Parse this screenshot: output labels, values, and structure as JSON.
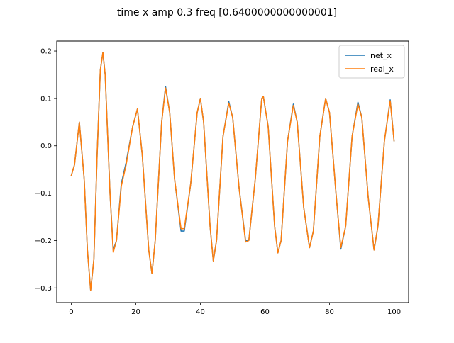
{
  "chart_data": {
    "type": "line",
    "title": "time x amp 0.3 freq [0.6400000000000001]",
    "xlabel": "",
    "ylabel": "",
    "xlim": [
      -4.5,
      104.5
    ],
    "ylim": [
      -0.331,
      0.221
    ],
    "xticks": [
      0,
      20,
      40,
      60,
      80,
      100
    ],
    "yticks": [
      -0.3,
      -0.2,
      -0.1,
      0.0,
      0.1,
      0.2
    ],
    "xtick_labels": [
      "0",
      "20",
      "40",
      "60",
      "80",
      "100"
    ],
    "ytick_labels": [
      "−0.3",
      "−0.2",
      "−0.1",
      "0.0",
      "0.1",
      "0.2"
    ],
    "grid": false,
    "legend_position": "top-right",
    "series": [
      {
        "name": "net_x",
        "color": "#1f77b4",
        "points": [
          [
            0,
            -0.063
          ],
          [
            1,
            -0.04
          ],
          [
            2.5,
            0.05
          ],
          [
            4,
            -0.07
          ],
          [
            5,
            -0.22
          ],
          [
            6,
            -0.305
          ],
          [
            7,
            -0.24
          ],
          [
            8,
            -0.02
          ],
          [
            9,
            0.16
          ],
          [
            9.8,
            0.197
          ],
          [
            10.5,
            0.15
          ],
          [
            12,
            -0.1
          ],
          [
            13,
            -0.22
          ],
          [
            14,
            -0.2
          ],
          [
            15.5,
            -0.08
          ],
          [
            17,
            -0.035
          ],
          [
            19,
            0.04
          ],
          [
            20.5,
            0.078
          ],
          [
            22,
            -0.02
          ],
          [
            24,
            -0.22
          ],
          [
            25,
            -0.27
          ],
          [
            26,
            -0.2
          ],
          [
            28,
            0.05
          ],
          [
            29.2,
            0.125
          ],
          [
            30.5,
            0.07
          ],
          [
            32,
            -0.07
          ],
          [
            34,
            -0.18
          ],
          [
            35,
            -0.18
          ],
          [
            37,
            -0.08
          ],
          [
            39,
            0.07
          ],
          [
            40,
            0.1
          ],
          [
            41,
            0.05
          ],
          [
            43,
            -0.17
          ],
          [
            44,
            -0.243
          ],
          [
            45,
            -0.2
          ],
          [
            47,
            0.02
          ],
          [
            48.8,
            0.093
          ],
          [
            50,
            0.06
          ],
          [
            52,
            -0.09
          ],
          [
            54,
            -0.2
          ],
          [
            55,
            -0.2
          ],
          [
            57,
            -0.07
          ],
          [
            59,
            0.1
          ],
          [
            59.5,
            0.104
          ],
          [
            61,
            0.04
          ],
          [
            63,
            -0.17
          ],
          [
            64,
            -0.226
          ],
          [
            65,
            -0.2
          ],
          [
            67,
            0.01
          ],
          [
            68.8,
            0.088
          ],
          [
            70,
            0.05
          ],
          [
            72,
            -0.13
          ],
          [
            73.8,
            -0.215
          ],
          [
            75,
            -0.18
          ],
          [
            77,
            0.02
          ],
          [
            78.8,
            0.1
          ],
          [
            80,
            0.07
          ],
          [
            82,
            -0.1
          ],
          [
            83.5,
            -0.218
          ],
          [
            85,
            -0.17
          ],
          [
            87,
            0.02
          ],
          [
            88.8,
            0.092
          ],
          [
            90,
            0.06
          ],
          [
            92,
            -0.11
          ],
          [
            93.8,
            -0.22
          ],
          [
            95,
            -0.17
          ],
          [
            97,
            0.01
          ],
          [
            98.8,
            0.097
          ],
          [
            100,
            0.01
          ]
        ]
      },
      {
        "name": "real_x",
        "color": "#ff7f0e",
        "points": [
          [
            0,
            -0.063
          ],
          [
            1,
            -0.04
          ],
          [
            2.5,
            0.05
          ],
          [
            4,
            -0.07
          ],
          [
            5,
            -0.22
          ],
          [
            6,
            -0.305
          ],
          [
            7,
            -0.24
          ],
          [
            8,
            -0.02
          ],
          [
            9,
            0.16
          ],
          [
            9.8,
            0.197
          ],
          [
            10.5,
            0.15
          ],
          [
            12,
            -0.1
          ],
          [
            13,
            -0.225
          ],
          [
            14,
            -0.2
          ],
          [
            15.5,
            -0.085
          ],
          [
            17,
            -0.04
          ],
          [
            19,
            0.04
          ],
          [
            20.5,
            0.078
          ],
          [
            22,
            -0.02
          ],
          [
            24,
            -0.22
          ],
          [
            25,
            -0.27
          ],
          [
            26,
            -0.2
          ],
          [
            28,
            0.05
          ],
          [
            29.2,
            0.122
          ],
          [
            30.5,
            0.07
          ],
          [
            32,
            -0.07
          ],
          [
            34,
            -0.175
          ],
          [
            35,
            -0.175
          ],
          [
            37,
            -0.08
          ],
          [
            39,
            0.07
          ],
          [
            40,
            0.1
          ],
          [
            41,
            0.05
          ],
          [
            43,
            -0.17
          ],
          [
            44,
            -0.243
          ],
          [
            45,
            -0.2
          ],
          [
            47,
            0.02
          ],
          [
            48.8,
            0.09
          ],
          [
            50,
            0.06
          ],
          [
            52,
            -0.09
          ],
          [
            54,
            -0.203
          ],
          [
            55,
            -0.2
          ],
          [
            57,
            -0.07
          ],
          [
            59,
            0.1
          ],
          [
            59.5,
            0.104
          ],
          [
            61,
            0.04
          ],
          [
            63,
            -0.17
          ],
          [
            64,
            -0.226
          ],
          [
            65,
            -0.2
          ],
          [
            67,
            0.01
          ],
          [
            68.8,
            0.085
          ],
          [
            70,
            0.05
          ],
          [
            72,
            -0.13
          ],
          [
            73.8,
            -0.215
          ],
          [
            75,
            -0.18
          ],
          [
            77,
            0.02
          ],
          [
            78.8,
            0.1
          ],
          [
            80,
            0.07
          ],
          [
            82,
            -0.1
          ],
          [
            83.5,
            -0.215
          ],
          [
            85,
            -0.17
          ],
          [
            87,
            0.02
          ],
          [
            88.8,
            0.088
          ],
          [
            90,
            0.06
          ],
          [
            92,
            -0.11
          ],
          [
            93.8,
            -0.22
          ],
          [
            95,
            -0.17
          ],
          [
            97,
            0.01
          ],
          [
            98.8,
            0.095
          ],
          [
            100,
            0.01
          ]
        ]
      }
    ]
  }
}
